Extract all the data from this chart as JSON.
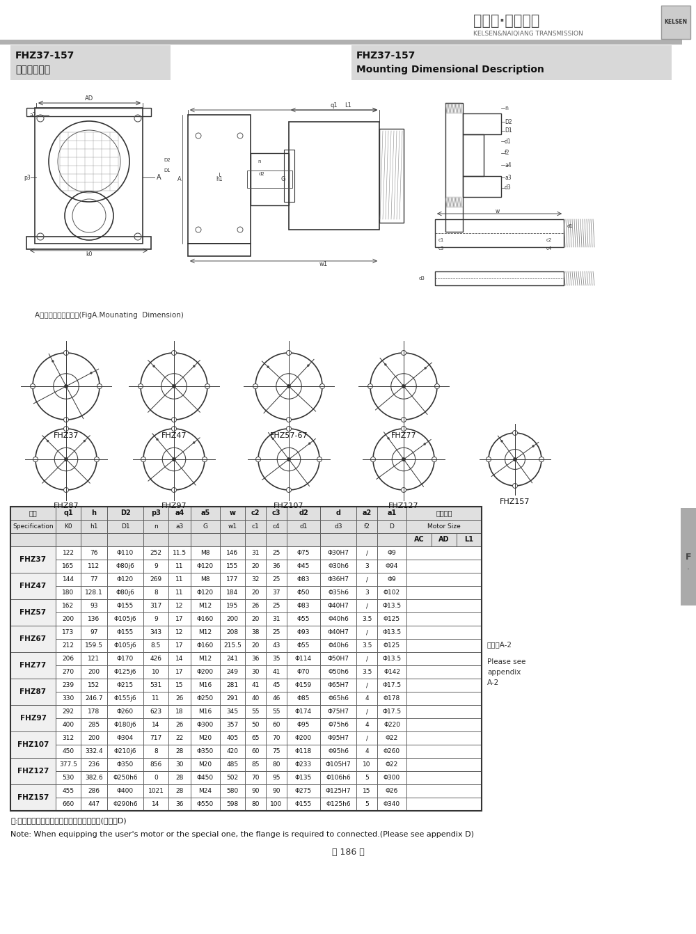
{
  "page_bg": "#ffffff",
  "logo_text_cn": "凯尔森·耐强传动",
  "logo_text_en": "KELSEN&NAIQIANG TRANSMISSION",
  "logo_box_text": "KELSEN",
  "title_left_line1": "FHZ37-157",
  "title_left_line2": "安装结构尺寸",
  "title_right_line1": "FHZ37-157",
  "title_right_line2": "Mounting Dimensional Description",
  "fig_caption": "A向法兰安装结构尺寸(FigA.Mounating  Dimension)",
  "note_cn": "注:电机需方配或配特殊电机时需加联接法兰(见附录D)",
  "note_en": "Note: When equipping the user's motor or the special one, the flange is required to connected.(Please see appendix D)",
  "page_number": "－ 186 －",
  "right_note_cn": "见附录A-2",
  "right_note_en": "Please see\nappendix\nA-2",
  "spec_rows": [
    "FHZ37",
    "FHZ47",
    "FHZ57",
    "FHZ67",
    "FHZ77",
    "FHZ87",
    "FHZ97",
    "FHZ107",
    "FHZ127",
    "FHZ157"
  ],
  "table_data": [
    [
      "122",
      "76",
      "Φ110",
      "252",
      "11.5",
      "M8",
      "146",
      "31",
      "25",
      "Φ75",
      "Φ30H7",
      "/",
      "Φ9"
    ],
    [
      "165",
      "112",
      "Φ80j6",
      "9",
      "11",
      "Φ120",
      "155",
      "20",
      "36",
      "Φ45",
      "Φ30h6",
      "3",
      "Φ94"
    ],
    [
      "144",
      "77",
      "Φ120",
      "269",
      "11",
      "M8",
      "177",
      "32",
      "25",
      "Φ83",
      "Φ36H7",
      "/",
      "Φ9"
    ],
    [
      "180",
      "128.1",
      "Φ80j6",
      "8",
      "11",
      "Φ120",
      "184",
      "20",
      "37",
      "Φ50",
      "Φ35h6",
      "3",
      "Φ102"
    ],
    [
      "162",
      "93",
      "Φ155",
      "317",
      "12",
      "M12",
      "195",
      "26",
      "25",
      "Φ83",
      "Φ40H7",
      "/",
      "Φ13.5"
    ],
    [
      "200",
      "136",
      "Φ105j6",
      "9",
      "17",
      "Φ160",
      "200",
      "20",
      "31",
      "Φ55",
      "Φ40h6",
      "3.5",
      "Φ125"
    ],
    [
      "173",
      "97",
      "Φ155",
      "343",
      "12",
      "M12",
      "208",
      "38",
      "25",
      "Φ93",
      "Φ40H7",
      "/",
      "Φ13.5"
    ],
    [
      "212",
      "159.5",
      "Φ105j6",
      "8.5",
      "17",
      "Φ160",
      "215.5",
      "20",
      "43",
      "Φ55",
      "Φ40h6",
      "3.5",
      "Φ125"
    ],
    [
      "206",
      "121",
      "Φ170",
      "426",
      "14",
      "M12",
      "241",
      "36",
      "35",
      "Φ114",
      "Φ50H7",
      "/",
      "Φ13.5"
    ],
    [
      "270",
      "200",
      "Φ125j6",
      "10",
      "17",
      "Φ200",
      "249",
      "30",
      "41",
      "Φ70",
      "Φ50h6",
      "3.5",
      "Φ142"
    ],
    [
      "239",
      "152",
      "Φ215",
      "531",
      "15",
      "M16",
      "281",
      "41",
      "45",
      "Φ159",
      "Φ65H7",
      "/",
      "Φ17.5"
    ],
    [
      "330",
      "246.7",
      "Φ155j6",
      "11",
      "26",
      "Φ250",
      "291",
      "40",
      "46",
      "Φ85",
      "Φ65h6",
      "4",
      "Φ178"
    ],
    [
      "292",
      "178",
      "Φ260",
      "623",
      "18",
      "M16",
      "345",
      "55",
      "55",
      "Φ174",
      "Φ75H7",
      "/",
      "Φ17.5"
    ],
    [
      "400",
      "285",
      "Φ180j6",
      "14",
      "26",
      "Φ300",
      "357",
      "50",
      "60",
      "Φ95",
      "Φ75h6",
      "4",
      "Φ220"
    ],
    [
      "312",
      "200",
      "Φ304",
      "717",
      "22",
      "M20",
      "405",
      "65",
      "70",
      "Φ200",
      "Φ95H7",
      "/",
      "Φ22"
    ],
    [
      "450",
      "332.4",
      "Φ210j6",
      "8",
      "28",
      "Φ350",
      "420",
      "60",
      "75",
      "Φ118",
      "Φ95h6",
      "4",
      "Φ260"
    ],
    [
      "377.5",
      "236",
      "Φ350",
      "856",
      "30",
      "M20",
      "485",
      "85",
      "80",
      "Φ233",
      "Φ105H7",
      "10",
      "Φ22"
    ],
    [
      "530",
      "382.6",
      "Φ250h6",
      "0",
      "28",
      "Φ450",
      "502",
      "70",
      "95",
      "Φ135",
      "Φ106h6",
      "5",
      "Φ300"
    ],
    [
      "455",
      "286",
      "Φ400",
      "1021",
      "28",
      "M24",
      "580",
      "90",
      "90",
      "Φ275",
      "Φ125H7",
      "15",
      "Φ26"
    ],
    [
      "660",
      "447",
      "Φ290h6",
      "14",
      "36",
      "Φ550",
      "598",
      "80",
      "100",
      "Φ155",
      "Φ125h6",
      "5",
      "Φ340"
    ]
  ],
  "col_headers_top": [
    "规格",
    "q1",
    "h",
    "D2",
    "p3",
    "a4",
    "a5",
    "w",
    "c2",
    "c3",
    "d2",
    "d",
    "a2",
    "a1",
    "电机尺寸"
  ],
  "col_headers_bot": [
    "Specification",
    "K0",
    "h1",
    "D1",
    "n",
    "a3",
    "G",
    "w1",
    "c1",
    "c4",
    "d1",
    "d3",
    "f2",
    "D",
    "Motor Size"
  ],
  "motor_subcols": [
    "AC",
    "AD",
    "L1"
  ]
}
